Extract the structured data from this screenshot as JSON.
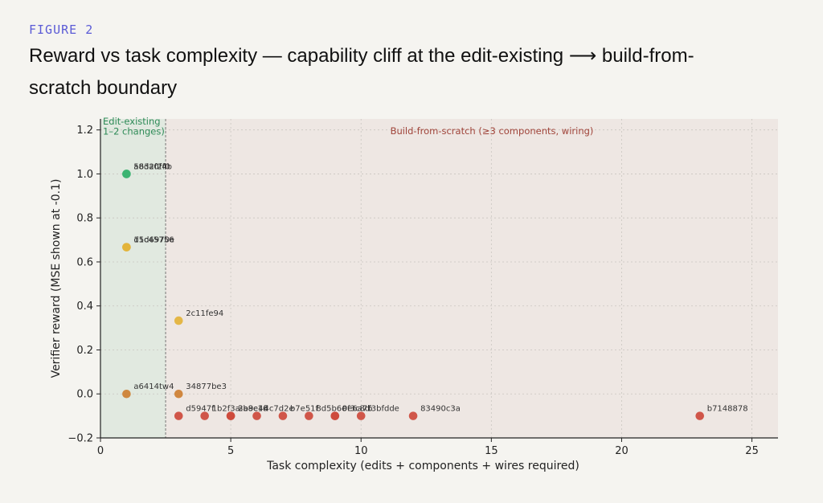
{
  "figure": {
    "label": "FIGURE 2",
    "title": "Reward vs task complexity — capability cliff at the edit-existing ⟶ build-from-scratch boundary"
  },
  "chart_data": {
    "type": "scatter",
    "xlabel": "Task complexity (edits + components + wires required)",
    "ylabel": "Verifier reward (MSE shown at -0.1)",
    "xlim": [
      0,
      26
    ],
    "ylim": [
      -0.2,
      1.25
    ],
    "xticks": [
      0,
      5,
      10,
      15,
      20,
      25
    ],
    "yticks": [
      -0.2,
      0.0,
      0.2,
      0.4,
      0.6,
      0.8,
      1.0,
      1.2
    ],
    "grid": true,
    "boundary_x": 2.5,
    "regions": [
      {
        "name": "edit-existing",
        "label_lines": [
          "Edit-existing",
          "1–2 changes)"
        ],
        "x_range": [
          0,
          2.5
        ],
        "color": "#2e8b57"
      },
      {
        "name": "build-from-scratch",
        "label_lines": [
          "Build-from-scratch (≥3 components, wiring)"
        ],
        "x_range": [
          2.5,
          26
        ],
        "color": "#a0443a"
      }
    ],
    "colors": {
      "green": "#3cb371",
      "yellow": "#e3b33a",
      "orange": "#cd7f32",
      "red": "#cd4a3c"
    },
    "points": [
      {
        "x": 1,
        "y": 1.0,
        "label": "5632f2f0",
        "color": "green"
      },
      {
        "x": 1,
        "y": 1.0,
        "label": "a8da0f4b",
        "color": "green"
      },
      {
        "x": 1,
        "y": 0.667,
        "label": "15c45756",
        "color": "yellow"
      },
      {
        "x": 1,
        "y": 0.667,
        "label": "d1d6970e",
        "color": "yellow"
      },
      {
        "x": 3,
        "y": 0.333,
        "label": "2c11fe94",
        "color": "yellow"
      },
      {
        "x": 1,
        "y": 0.0,
        "label": "a6414tw4",
        "color": "orange"
      },
      {
        "x": 3,
        "y": 0.0,
        "label": "34877be3",
        "color": "orange"
      },
      {
        "x": 3,
        "y": -0.1,
        "label": "d5947f",
        "color": "red"
      },
      {
        "x": 4,
        "y": -0.1,
        "label": "1b2f3a",
        "color": "red"
      },
      {
        "x": 5,
        "y": -0.1,
        "label": "2a8e4f",
        "color": "red"
      },
      {
        "x": 5,
        "y": -0.1,
        "label": "3b9c1d",
        "color": "red"
      },
      {
        "x": 6,
        "y": -0.1,
        "label": "4c7d2e",
        "color": "red"
      },
      {
        "x": 7,
        "y": -0.1,
        "label": "b7e51f",
        "color": "red"
      },
      {
        "x": 8,
        "y": -0.1,
        "label": "8d5b6c",
        "color": "red"
      },
      {
        "x": 9,
        "y": -0.1,
        "label": "9e6a7b",
        "color": "red"
      },
      {
        "x": 9,
        "y": -0.1,
        "label": "0f3c8d",
        "color": "red"
      },
      {
        "x": 10,
        "y": -0.1,
        "label": "f3bfdde",
        "color": "red"
      },
      {
        "x": 12,
        "y": -0.1,
        "label": "83490c3a",
        "color": "red"
      },
      {
        "x": 23,
        "y": -0.1,
        "label": "b7148878",
        "color": "red"
      }
    ]
  }
}
